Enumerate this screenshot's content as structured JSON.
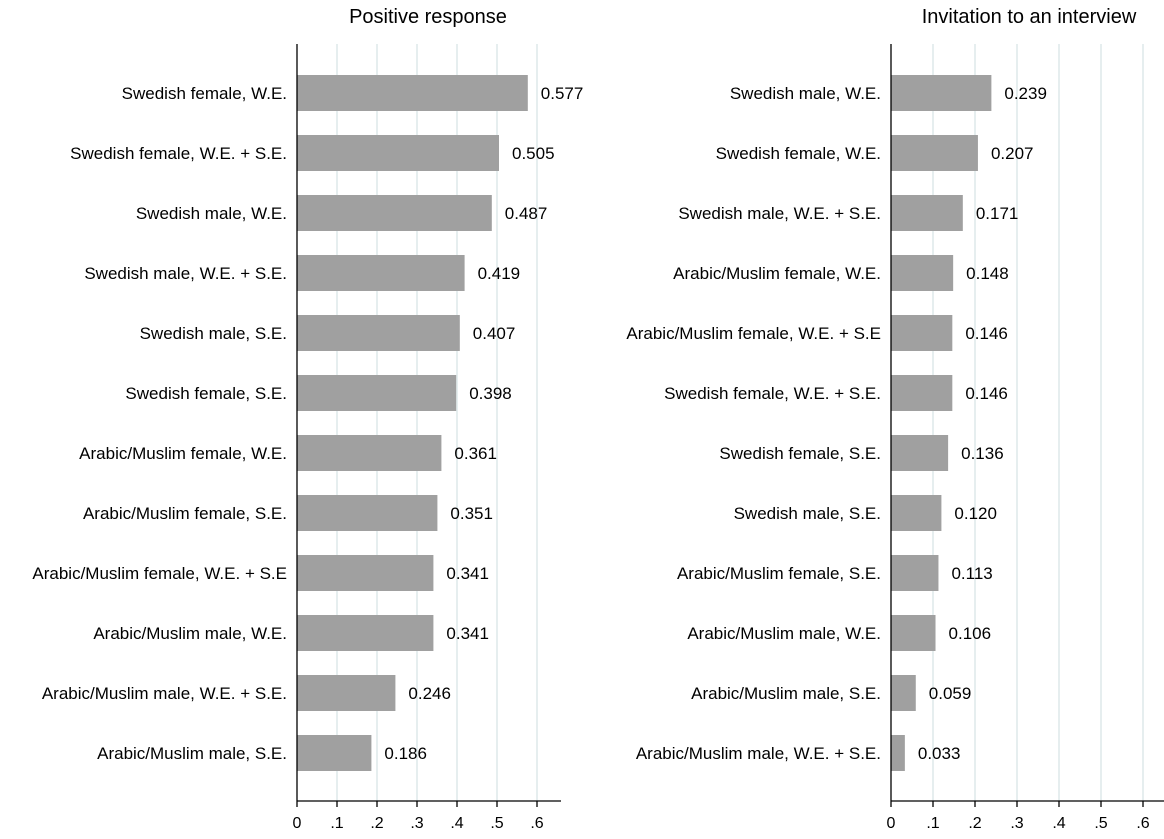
{
  "colors": {
    "bar": "#a0a0a0",
    "grid": "#dde8ea",
    "axis": "#000000",
    "background": "#ffffff"
  },
  "chart_data": [
    {
      "type": "bar",
      "orientation": "horizontal",
      "title": "Positive response",
      "categories": [
        "Swedish female, W.E.",
        "Swedish female, W.E. + S.E.",
        "Swedish male, W.E.",
        "Swedish male, W.E. + S.E.",
        "Swedish male, S.E.",
        "Swedish female, S.E.",
        "Arabic/Muslim female, W.E.",
        "Arabic/Muslim female, S.E.",
        "Arabic/Muslim female, W.E. + S.E",
        "Arabic/Muslim male, W.E.",
        "Arabic/Muslim male, W.E. + S.E.",
        "Arabic/Muslim male, S.E."
      ],
      "values": [
        0.577,
        0.505,
        0.487,
        0.419,
        0.407,
        0.398,
        0.361,
        0.351,
        0.341,
        0.341,
        0.246,
        0.186
      ],
      "value_labels": [
        "0.577",
        "0.505",
        "0.487",
        "0.419",
        "0.407",
        "0.398",
        "0.361",
        "0.351",
        "0.341",
        "0.341",
        "0.246",
        "0.186"
      ],
      "xlim": [
        0,
        0.65
      ],
      "xticks": [
        0,
        0.1,
        0.2,
        0.3,
        0.4,
        0.5,
        0.6
      ],
      "xtick_labels": [
        "0",
        ".1",
        ".2",
        ".3",
        ".4",
        ".5",
        ".6"
      ],
      "grid": true
    },
    {
      "type": "bar",
      "orientation": "horizontal",
      "title": "Invitation to an interview",
      "categories": [
        "Swedish male, W.E.",
        "Swedish female, W.E.",
        "Swedish male, W.E. + S.E.",
        "Arabic/Muslim female, W.E.",
        "Arabic/Muslim female, W.E. + S.E",
        "Swedish female, W.E. + S.E.",
        "Swedish female, S.E.",
        "Swedish male, S.E.",
        "Arabic/Muslim female, S.E.",
        "Arabic/Muslim male, W.E.",
        "Arabic/Muslim male, S.E.",
        "Arabic/Muslim male, W.E. + S.E."
      ],
      "values": [
        0.239,
        0.207,
        0.171,
        0.148,
        0.146,
        0.146,
        0.136,
        0.12,
        0.113,
        0.106,
        0.059,
        0.033
      ],
      "value_labels": [
        "0.239",
        "0.207",
        "0.171",
        "0.148",
        "0.146",
        "0.146",
        "0.136",
        "0.120",
        "0.113",
        "0.106",
        "0.059",
        "0.033"
      ],
      "xlim": [
        0,
        0.65
      ],
      "xticks": [
        0,
        0.1,
        0.2,
        0.3,
        0.4,
        0.5,
        0.6
      ],
      "xtick_labels": [
        "0",
        ".1",
        ".2",
        ".3",
        ".4",
        ".5",
        ".6"
      ],
      "grid": true
    }
  ]
}
